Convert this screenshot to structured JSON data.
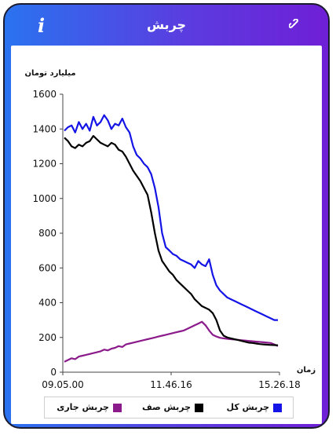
{
  "header": {
    "title": "چربش",
    "info_icon": "i"
  },
  "colors": {
    "frame_gradient_start": "#2a73f0",
    "frame_gradient_end": "#6f1fd6"
  },
  "chart_data": {
    "type": "line",
    "title": "",
    "ylabel": "میلیارد تومان",
    "xlabel": "زمان",
    "ylim": [
      0,
      1600
    ],
    "y_ticks": [
      0,
      200,
      400,
      600,
      800,
      1000,
      1200,
      1400,
      1600
    ],
    "x_tick_labels": [
      "09.05.00",
      "11.46.16",
      "15.26.18"
    ],
    "grid": false,
    "legend_placement": "bottom",
    "series": [
      {
        "name": "چربش کل",
        "color": "#1414e6",
        "values": [
          1390,
          1410,
          1420,
          1380,
          1440,
          1400,
          1430,
          1390,
          1470,
          1420,
          1440,
          1480,
          1450,
          1400,
          1430,
          1420,
          1460,
          1410,
          1380,
          1300,
          1250,
          1230,
          1200,
          1180,
          1140,
          1060,
          950,
          800,
          720,
          700,
          680,
          670,
          650,
          640,
          630,
          620,
          600,
          640,
          620,
          610,
          650,
          560,
          500,
          470,
          450,
          430,
          420,
          410,
          400,
          390,
          380,
          370,
          360,
          350,
          340,
          330,
          320,
          310,
          300,
          300
        ]
      },
      {
        "name": "چربش صف",
        "color": "#000000",
        "values": [
          1350,
          1330,
          1300,
          1290,
          1310,
          1300,
          1320,
          1330,
          1360,
          1340,
          1320,
          1310,
          1300,
          1320,
          1310,
          1280,
          1270,
          1240,
          1200,
          1160,
          1130,
          1100,
          1060,
          1020,
          920,
          800,
          700,
          640,
          610,
          580,
          560,
          530,
          510,
          490,
          470,
          450,
          420,
          400,
          380,
          370,
          360,
          340,
          300,
          240,
          210,
          200,
          195,
          190,
          185,
          180,
          175,
          170,
          168,
          165,
          162,
          160,
          158,
          157,
          156,
          155
        ]
      },
      {
        "name": "چربش جاری",
        "color": "#8b1a8b",
        "values": [
          60,
          70,
          80,
          75,
          90,
          95,
          100,
          105,
          110,
          115,
          120,
          130,
          125,
          135,
          140,
          150,
          145,
          160,
          165,
          170,
          175,
          180,
          185,
          190,
          195,
          200,
          205,
          210,
          215,
          220,
          225,
          230,
          235,
          240,
          250,
          260,
          270,
          280,
          290,
          270,
          240,
          215,
          205,
          198,
          195,
          192,
          190,
          188,
          186,
          184,
          182,
          180,
          178,
          176,
          174,
          172,
          170,
          168,
          160,
          150
        ]
      }
    ]
  }
}
